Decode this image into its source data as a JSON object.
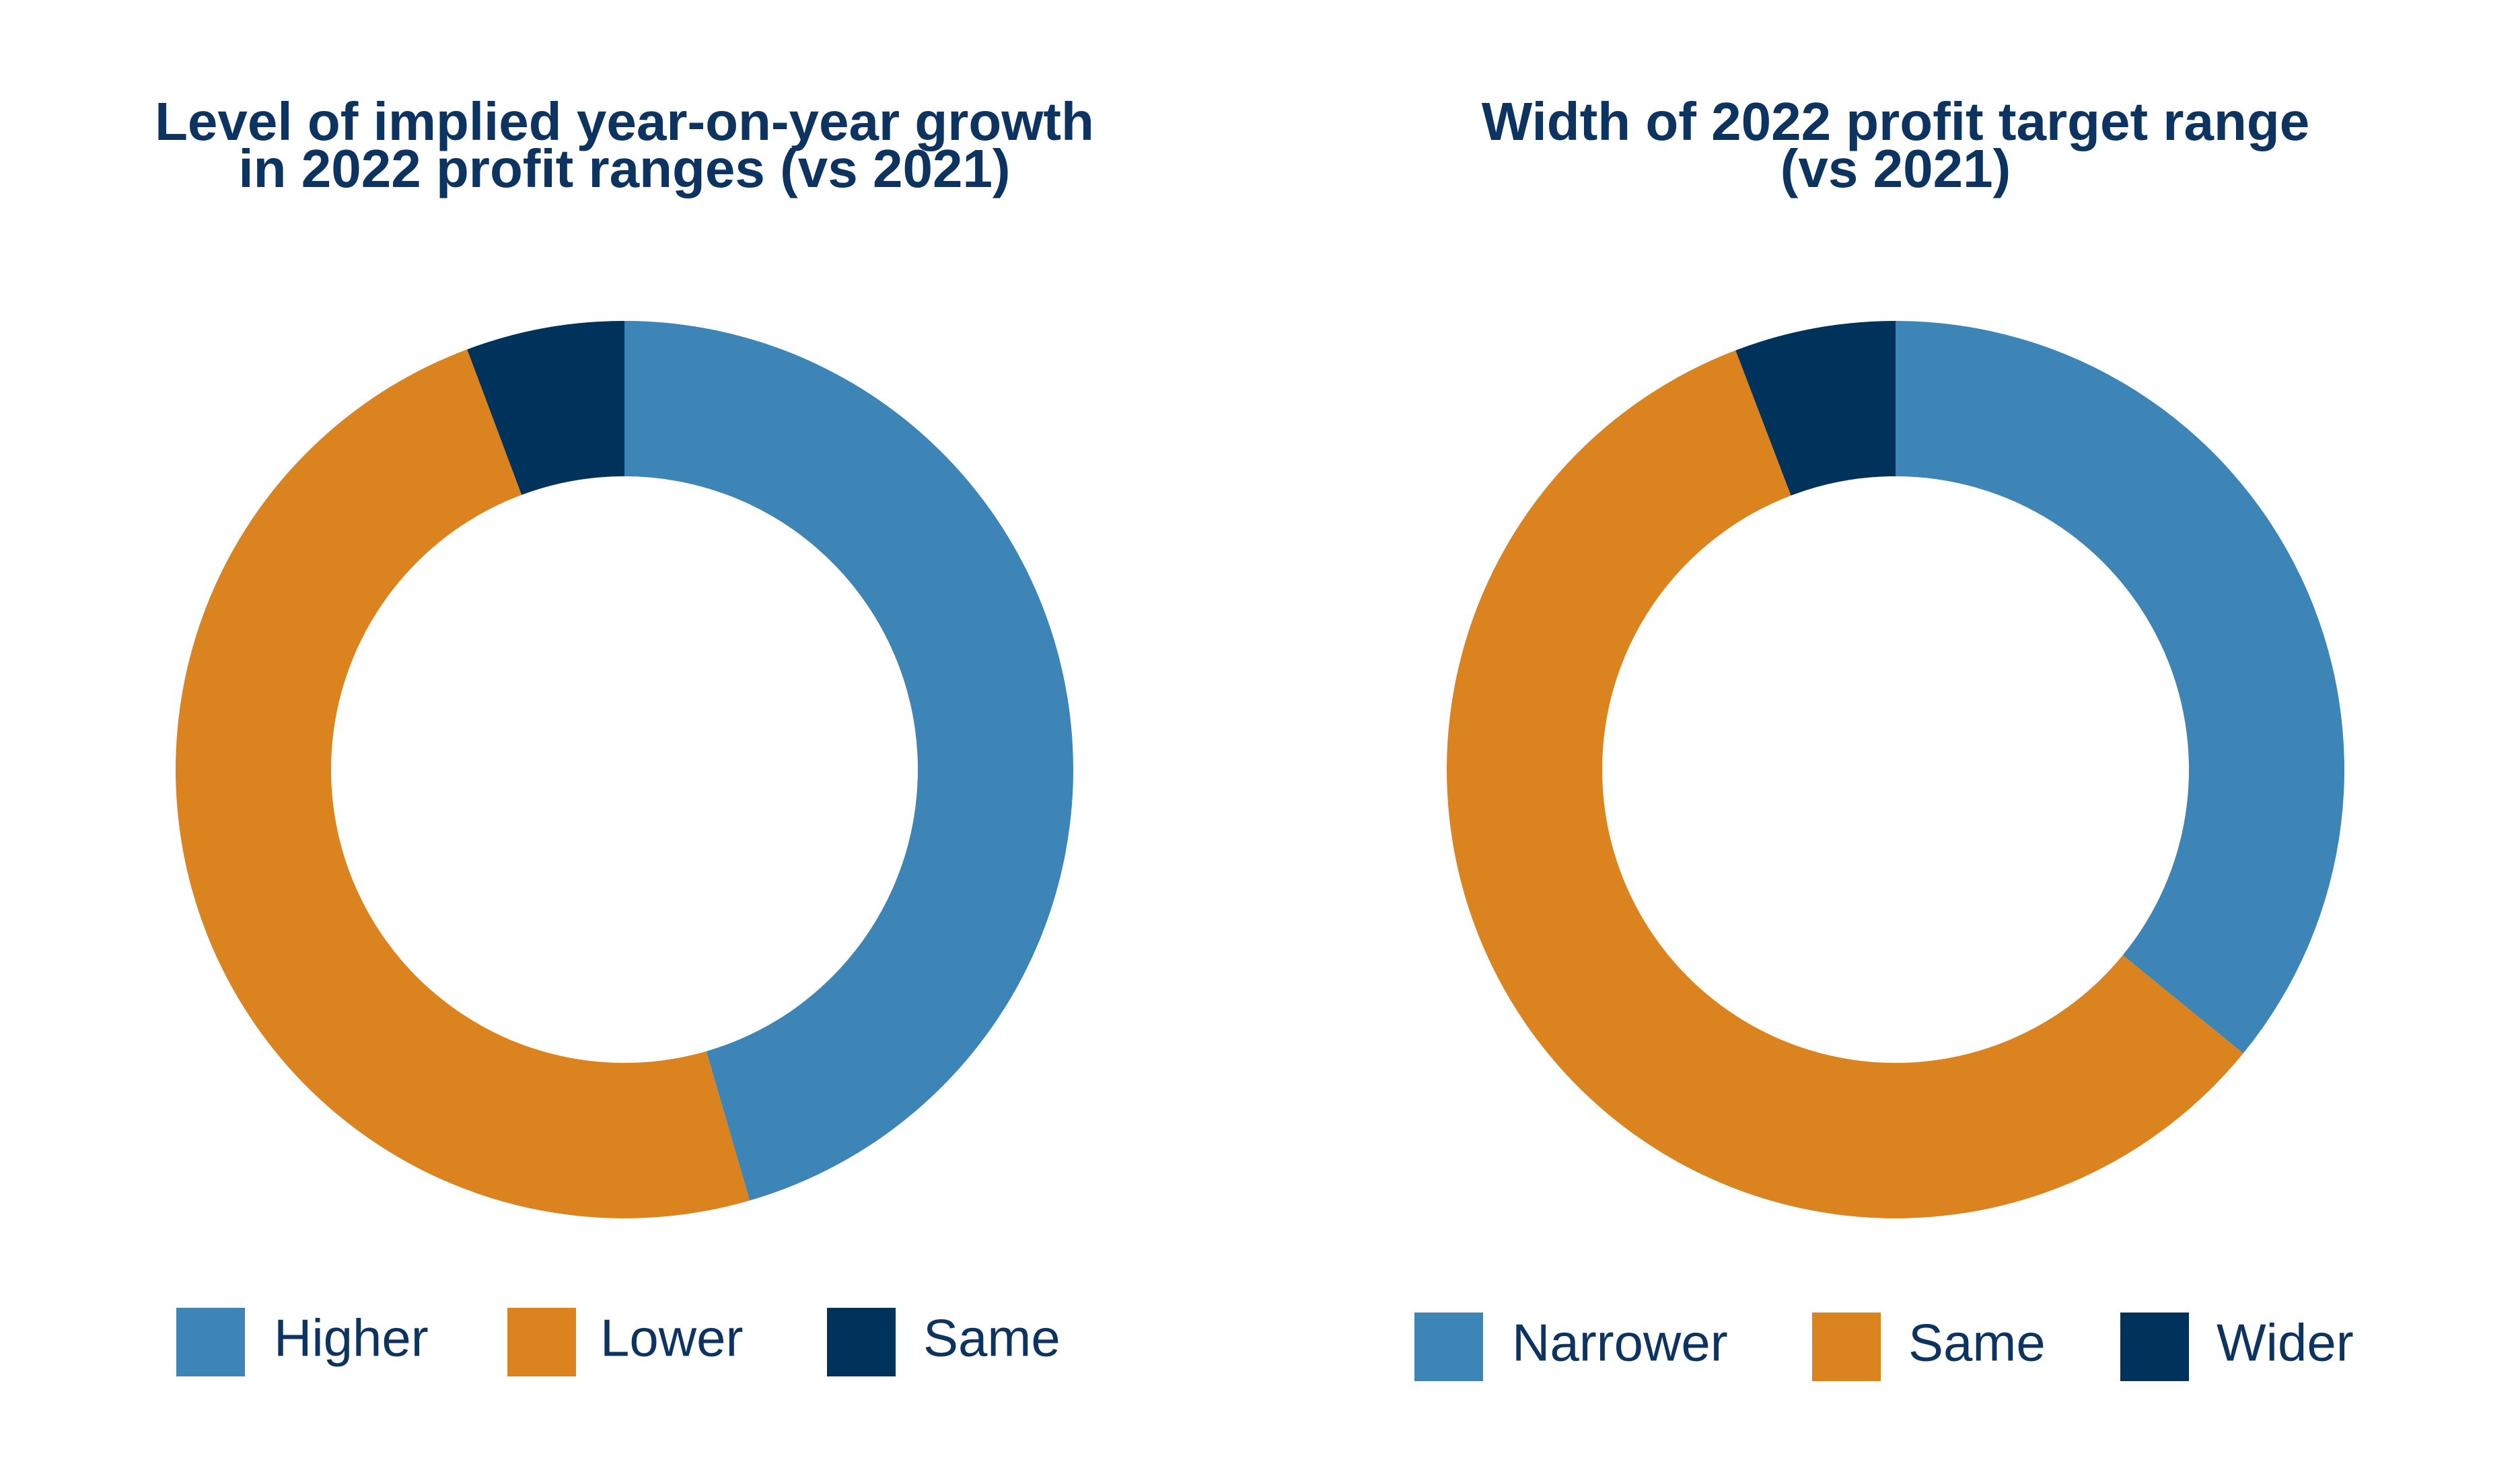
{
  "chart_data": [
    {
      "type": "donut",
      "title": [
        "Level of implied year-on-year growth",
        "in 2022 profit ranges (vs 2021)"
      ],
      "categories": [
        "Higher",
        "Lower",
        "Same"
      ],
      "values": [
        45.5,
        48.8,
        5.7
      ],
      "colors": [
        "#3d85b6",
        "#db831f",
        "#00335c"
      ]
    },
    {
      "type": "donut",
      "title": [
        "Width of 2022 profit target range",
        "(vs 2021)"
      ],
      "categories": [
        "Narrower",
        "Same",
        "Wider"
      ],
      "values": [
        35.9,
        58.3,
        5.8
      ],
      "colors": [
        "#3d85b6",
        "#db831f",
        "#00335c"
      ]
    }
  ]
}
